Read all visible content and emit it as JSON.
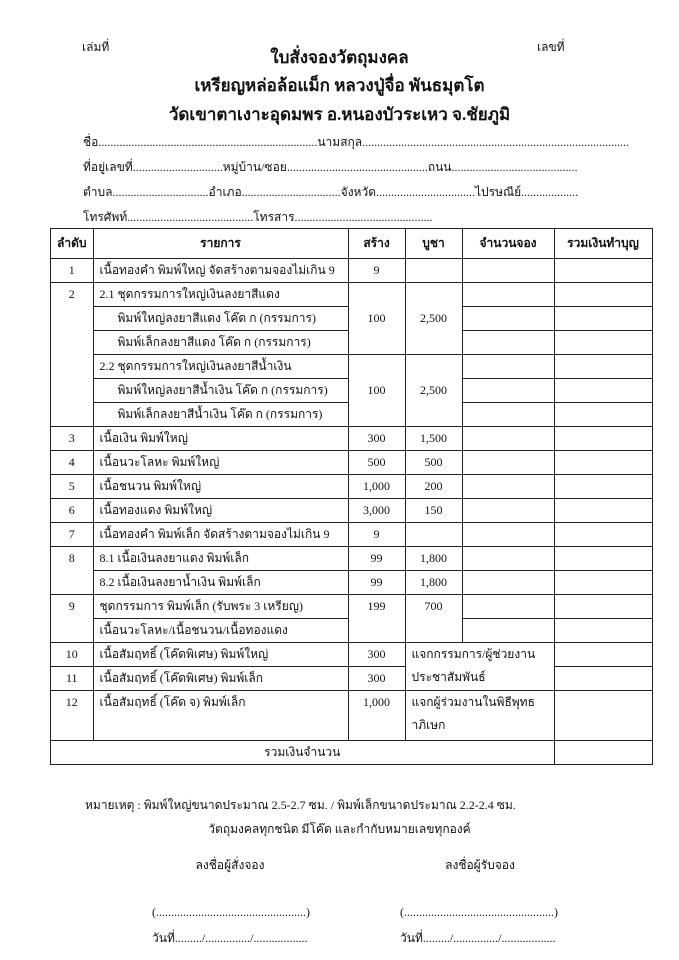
{
  "header": {
    "book_no_label": "เล่มที่",
    "number_label": "เลขที่",
    "title": "ใบสั่งจองวัตถุมงคล",
    "subtitle": "เหรียญหล่อล้อแม็ก หลวงปู่จื่อ พันธมุตโต",
    "temple": "วัดเขาตาเงาะอุดมพร อ.หนองบัวระเหว จ.ชัยภูมิ"
  },
  "fields": {
    "line1": "ชื่อ.........................................................................นามสกุล.........................................................................................",
    "line2": "ที่อยู่เลขที่..............................หมู่บ้าน/ซอย...............................................ถนน..........................................",
    "line3": "ตำบล................................อำเภอ.................................จังหวัด.................................ไปรษณีย์...................",
    "line4": "โทรศัพท์..........................................โทรสาร.............................................."
  },
  "table": {
    "headers": [
      "ลำดับ",
      "รายการ",
      "สร้าง",
      "บูชา",
      "จำนวนจอง",
      "รวมเงินทำบุญ"
    ],
    "r1": {
      "no": "1",
      "item": "เนื้อทองคำ พิมพ์ใหญ่ จัดสร้างตามจองไม่เกิน 9",
      "made": "9"
    },
    "r2": {
      "no": "2",
      "g1_title": "2.1 ชุดกรรมการใหญ่เงินลงยาสีแดง",
      "g1_a": "พิมพ์ใหญ่ลงยาสีแดง โค๊ด ก (กรรมการ)",
      "g1_b": "พิมพ์เล็กลงยาสีแดง โค๊ด ก (กรรมการ)",
      "g1_made": "100",
      "g1_price": "2,500",
      "g2_title": "2.2 ชุดกรรมการใหญ่เงินลงยาสีน้ำเงิน",
      "g2_a": "พิมพ์ใหญ่ลงยาสีน้ำเงิน โค๊ด ก (กรรมการ)",
      "g2_b": "พิมพ์เล็กลงยาสีน้ำเงิน โค๊ด ก (กรรมการ)",
      "g2_made": "100",
      "g2_price": "2,500"
    },
    "r3": {
      "no": "3",
      "item": "เนื้อเงิน พิมพ์ใหญ่",
      "made": "300",
      "price": "1,500"
    },
    "r4": {
      "no": "4",
      "item": "เนื้อนวะโลหะ พิมพ์ใหญ่",
      "made": "500",
      "price": "500"
    },
    "r5": {
      "no": "5",
      "item": "เนื้อชนวน พิมพ์ใหญ่",
      "made": "1,000",
      "price": "200"
    },
    "r6": {
      "no": "6",
      "item": "เนื้อทองแดง พิมพ์ใหญ่",
      "made": "3,000",
      "price": "150"
    },
    "r7": {
      "no": "7",
      "item": "เนื้อทองคำ พิมพ์เล็ก จัดสร้างตามจองไม่เกิน 9",
      "made": "9"
    },
    "r8": {
      "no": "8",
      "a_item": "8.1 เนื้อเงินลงยาแดง พิมพ์เล็ก",
      "a_made": "99",
      "a_price": "1,800",
      "b_item": "8.2 เนื้อเงินลงยาน้ำเงิน พิมพ์เล็ก",
      "b_made": "99",
      "b_price": "1,800"
    },
    "r9": {
      "no": "9",
      "item": "ชุดกรรมการ พิมพ์เล็ก (รับพระ 3 เหรียญ)",
      "item2": "เนื้อนวะโลหะ/เนื้อชนวน/เนื้อทองแดง",
      "made": "199",
      "price": "700"
    },
    "r10": {
      "no": "10",
      "item": "เนื้อสัมฤทธิ์ (โค๊ดพิเศษ) พิมพ์ใหญ่",
      "made": "300"
    },
    "r11": {
      "no": "11",
      "item": "เนื้อสัมฤทธิ์ (โค๊ดพิเศษ) พิมพ์เล็ก",
      "made": "300"
    },
    "r10_11_note": "แจกกรรมการ/ผู้ช่วยงานประชาสัมพันธ์",
    "r12": {
      "no": "12",
      "item": "เนื้อสัมฤทธิ์ (โค๊ด จ) พิมพ์เล็ก",
      "made": "1,000",
      "note": "แจกผู้ร่วมงานในพิธีพุทธาภิเษก"
    },
    "total_label": "รวมเงินจำนวน"
  },
  "notes": {
    "note1": "หมายเหตุ : พิมพ์ใหญ่ขนาดประมาณ 2.5-2.7 ซม. / พิมพ์เล็กขนาดประมาณ 2.2-2.4 ซม.",
    "note2": "วัตถุมงคลทุกชนิด มีโค๊ด และกำกับหมายเลขทุกองค์"
  },
  "signatures": {
    "orderer_label": "ลงชื่อผู้สั่งจอง",
    "receiver_label": "ลงชื่อผู้รับจอง",
    "name_line": "(..................................................)",
    "date_line": "วันที่........./.............../.................."
  }
}
